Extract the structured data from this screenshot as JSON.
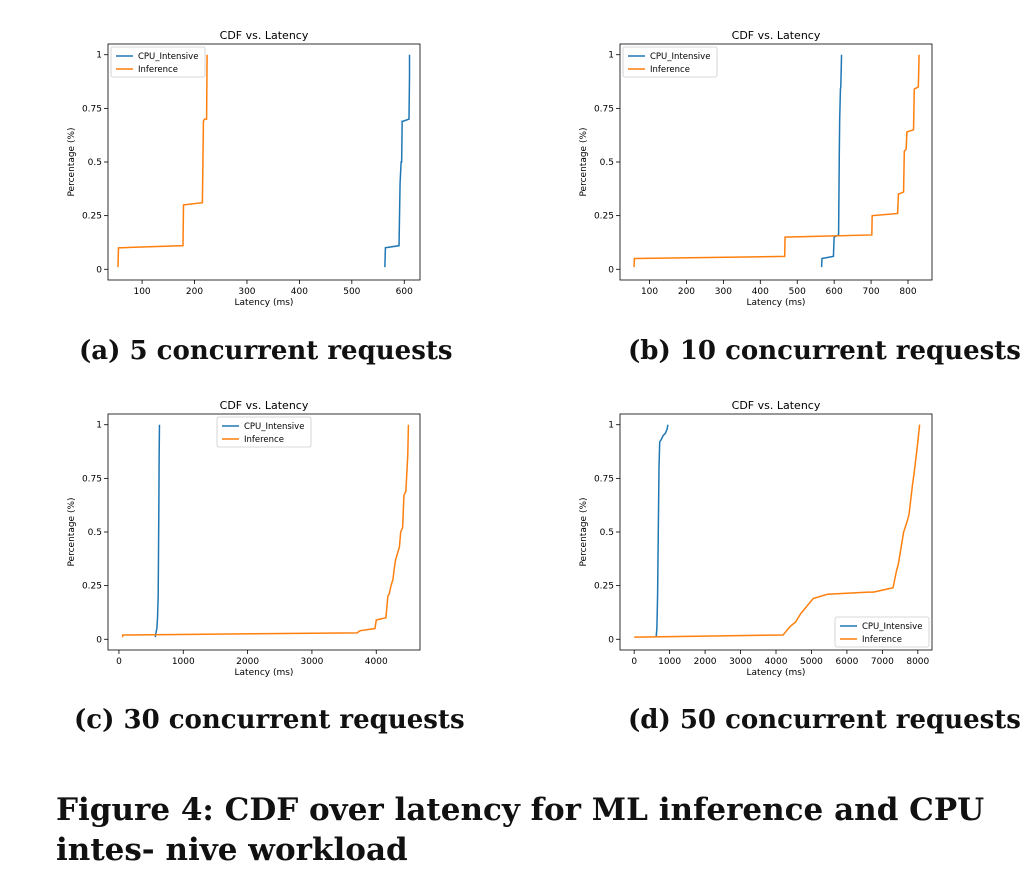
{
  "colors": {
    "cpu": "#1f77b4",
    "inference": "#ff7f0e",
    "axis": "#000000"
  },
  "figure_caption": "Figure 4: CDF over latency for ML inference and CPU intes- nive workload",
  "chart_data": [
    {
      "type": "line",
      "title": "CDF vs. Latency",
      "xlabel": "Latency (ms)",
      "ylabel": "Percentage (%)",
      "caption": "(a) 5 concurrent requests",
      "xlim": [
        35,
        630
      ],
      "ylim": [
        -0.05,
        1.05
      ],
      "xticks": [
        100,
        200,
        300,
        400,
        500,
        600
      ],
      "yticks": [
        0,
        0.25,
        0.5,
        0.75,
        1
      ],
      "ytick_labels": [
        "0",
        "0.25",
        "0.5",
        "0.75",
        "1"
      ],
      "legend": "upper-left",
      "series": [
        {
          "name": "CPU_Intensive",
          "color": "#1f77b4",
          "x": [
            563,
            564,
            590,
            592,
            594,
            595,
            596,
            598,
            609,
            610,
            610
          ],
          "y": [
            0.01,
            0.1,
            0.11,
            0.4,
            0.5,
            0.5,
            0.69,
            0.69,
            0.7,
            0.9,
            1.0
          ]
        },
        {
          "name": "Inference",
          "color": "#ff7f0e",
          "x": [
            54,
            55,
            178,
            179,
            215,
            217,
            219,
            223,
            224
          ],
          "y": [
            0.01,
            0.1,
            0.11,
            0.3,
            0.31,
            0.69,
            0.7,
            0.7,
            1.0
          ]
        }
      ]
    },
    {
      "type": "line",
      "title": "CDF vs. Latency",
      "xlabel": "Latency (ms)",
      "ylabel": "Percentage (%)",
      "caption": "(b) 10 concurrent requests",
      "xlim": [
        20,
        865
      ],
      "ylim": [
        -0.05,
        1.05
      ],
      "xticks": [
        100,
        200,
        300,
        400,
        500,
        600,
        700,
        800
      ],
      "yticks": [
        0,
        0.25,
        0.5,
        0.75,
        1
      ],
      "ytick_labels": [
        "0",
        "0.25",
        "0.5",
        "0.75",
        "1"
      ],
      "legend": "upper-left",
      "series": [
        {
          "name": "CPU_Intensive",
          "color": "#1f77b4",
          "x": [
            566,
            567,
            598,
            600,
            612,
            614,
            615,
            617,
            618,
            620
          ],
          "y": [
            0.01,
            0.05,
            0.06,
            0.15,
            0.16,
            0.55,
            0.7,
            0.84,
            0.85,
            1.0
          ]
        },
        {
          "name": "Inference",
          "color": "#ff7f0e",
          "x": [
            58,
            59,
            466,
            467,
            702,
            703,
            772,
            774,
            788,
            790,
            795,
            797,
            815,
            817,
            828,
            830
          ],
          "y": [
            0.01,
            0.05,
            0.06,
            0.15,
            0.16,
            0.25,
            0.26,
            0.35,
            0.36,
            0.55,
            0.56,
            0.64,
            0.65,
            0.84,
            0.85,
            1.0
          ]
        }
      ]
    },
    {
      "type": "line",
      "title": "CDF vs. Latency",
      "xlabel": "Latency (ms)",
      "ylabel": "Percentage (%)",
      "caption": "(c) 30 concurrent requests",
      "xlim": [
        -170,
        4680
      ],
      "ylim": [
        -0.05,
        1.05
      ],
      "xticks": [
        0,
        1000,
        2000,
        3000,
        4000
      ],
      "yticks": [
        0,
        0.25,
        0.5,
        0.75,
        1
      ],
      "ytick_labels": [
        "0",
        "0.25",
        "0.5",
        "0.75",
        "1"
      ],
      "legend": "upper-center",
      "series": [
        {
          "name": "CPU_Intensive",
          "color": "#1f77b4",
          "x": [
            565,
            575,
            590,
            600,
            610,
            615,
            620,
            625,
            630
          ],
          "y": [
            0.01,
            0.03,
            0.05,
            0.1,
            0.2,
            0.4,
            0.6,
            0.85,
            1.0
          ]
        },
        {
          "name": "Inference",
          "color": "#ff7f0e",
          "x": [
            55,
            60,
            3700,
            3750,
            3980,
            4000,
            4150,
            4180,
            4200,
            4230,
            4260,
            4280,
            4300,
            4340,
            4360,
            4380,
            4410,
            4430,
            4460,
            4480,
            4490,
            4500
          ],
          "y": [
            0.01,
            0.02,
            0.03,
            0.04,
            0.05,
            0.09,
            0.1,
            0.2,
            0.21,
            0.25,
            0.28,
            0.33,
            0.37,
            0.41,
            0.43,
            0.5,
            0.52,
            0.67,
            0.69,
            0.8,
            0.86,
            1.0
          ]
        }
      ]
    },
    {
      "type": "line",
      "title": "CDF vs. Latency",
      "xlabel": "Latency (ms)",
      "ylabel": "Percentage (%)",
      "caption": "(d) 50 concurrent requests",
      "xlim": [
        -400,
        8400
      ],
      "ylim": [
        -0.05,
        1.05
      ],
      "xticks": [
        0,
        1000,
        2000,
        3000,
        4000,
        5000,
        6000,
        7000,
        8000
      ],
      "yticks": [
        0,
        0.25,
        0.5,
        0.75,
        1
      ],
      "ytick_labels": [
        "0",
        "0.25",
        "0.5",
        "0.75",
        "1"
      ],
      "legend": "lower-right",
      "series": [
        {
          "name": "CPU_Intensive",
          "color": "#1f77b4",
          "x": [
            620,
            640,
            660,
            680,
            700,
            720,
            760,
            820,
            880,
            930,
            950
          ],
          "y": [
            0.01,
            0.05,
            0.2,
            0.5,
            0.8,
            0.92,
            0.93,
            0.95,
            0.96,
            0.98,
            1.0
          ]
        },
        {
          "name": "Inference",
          "color": "#ff7f0e",
          "x": [
            0,
            50,
            4200,
            4300,
            4400,
            4550,
            4700,
            4800,
            4900,
            5000,
            5050,
            5450,
            6600,
            6750,
            7300,
            7400,
            7450,
            7550,
            7600,
            7700,
            7750,
            7800,
            7850,
            7900,
            7950,
            8000,
            8050
          ],
          "y": [
            0.01,
            0.01,
            0.02,
            0.04,
            0.06,
            0.08,
            0.12,
            0.14,
            0.16,
            0.18,
            0.19,
            0.21,
            0.22,
            0.22,
            0.24,
            0.32,
            0.35,
            0.45,
            0.5,
            0.55,
            0.58,
            0.65,
            0.72,
            0.78,
            0.85,
            0.92,
            1.0
          ]
        }
      ]
    }
  ]
}
